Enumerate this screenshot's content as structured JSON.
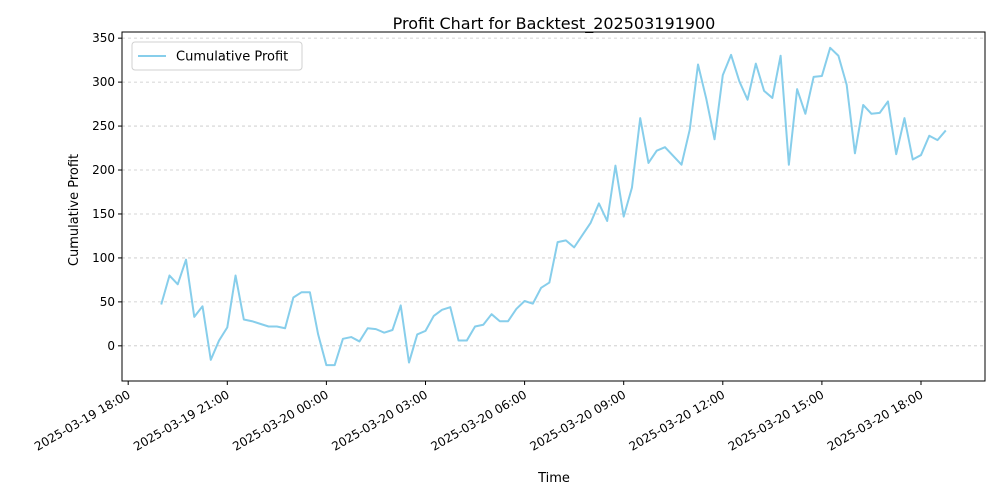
{
  "chart_data": {
    "type": "line",
    "title": "Profit Chart for Backtest_202503191900",
    "xlabel": "Time",
    "ylabel": "Cumulative Profit",
    "x": [
      "2025-03-19 19:00",
      "2025-03-19 19:15",
      "2025-03-19 19:30",
      "2025-03-19 19:45",
      "2025-03-19 20:00",
      "2025-03-19 20:15",
      "2025-03-19 20:30",
      "2025-03-19 20:45",
      "2025-03-19 21:00",
      "2025-03-19 21:15",
      "2025-03-19 21:30",
      "2025-03-19 21:45",
      "2025-03-19 22:00",
      "2025-03-19 22:15",
      "2025-03-19 22:30",
      "2025-03-19 22:45",
      "2025-03-19 23:00",
      "2025-03-19 23:15",
      "2025-03-19 23:30",
      "2025-03-19 23:45",
      "2025-03-20 00:00",
      "2025-03-20 00:15",
      "2025-03-20 00:30",
      "2025-03-20 00:45",
      "2025-03-20 01:00",
      "2025-03-20 01:15",
      "2025-03-20 01:30",
      "2025-03-20 01:45",
      "2025-03-20 02:00",
      "2025-03-20 02:15",
      "2025-03-20 02:30",
      "2025-03-20 02:45",
      "2025-03-20 03:00",
      "2025-03-20 03:15",
      "2025-03-20 03:30",
      "2025-03-20 03:45",
      "2025-03-20 04:00",
      "2025-03-20 04:15",
      "2025-03-20 04:30",
      "2025-03-20 04:45",
      "2025-03-20 05:00",
      "2025-03-20 05:15",
      "2025-03-20 05:30",
      "2025-03-20 05:45",
      "2025-03-20 06:00",
      "2025-03-20 06:15",
      "2025-03-20 06:30",
      "2025-03-20 06:45",
      "2025-03-20 07:00",
      "2025-03-20 07:15",
      "2025-03-20 07:30",
      "2025-03-20 07:45",
      "2025-03-20 08:00",
      "2025-03-20 08:15",
      "2025-03-20 08:30",
      "2025-03-20 08:45",
      "2025-03-20 09:00",
      "2025-03-20 09:15",
      "2025-03-20 09:30",
      "2025-03-20 09:45",
      "2025-03-20 10:00",
      "2025-03-20 10:15",
      "2025-03-20 10:30",
      "2025-03-20 10:45",
      "2025-03-20 11:00",
      "2025-03-20 11:15",
      "2025-03-20 11:30",
      "2025-03-20 11:45",
      "2025-03-20 12:00",
      "2025-03-20 12:15",
      "2025-03-20 12:30",
      "2025-03-20 12:45",
      "2025-03-20 13:00",
      "2025-03-20 13:15",
      "2025-03-20 13:30",
      "2025-03-20 13:45",
      "2025-03-20 14:00",
      "2025-03-20 14:15",
      "2025-03-20 14:30",
      "2025-03-20 14:45",
      "2025-03-20 15:00",
      "2025-03-20 15:15",
      "2025-03-20 15:30",
      "2025-03-20 15:45",
      "2025-03-20 16:00",
      "2025-03-20 16:15",
      "2025-03-20 16:30",
      "2025-03-20 16:45",
      "2025-03-20 17:00",
      "2025-03-20 17:15",
      "2025-03-20 17:30",
      "2025-03-20 17:45",
      "2025-03-20 18:00",
      "2025-03-20 18:15",
      "2025-03-20 18:30",
      "2025-03-20 18:45"
    ],
    "series": [
      {
        "name": "Cumulative Profit",
        "color": "#87ceeb",
        "values": [
          47,
          80,
          70,
          98,
          33,
          45,
          -16,
          6,
          21,
          80,
          30,
          28,
          25,
          22,
          22,
          20,
          55,
          61,
          61,
          13,
          -22,
          -22,
          8,
          10,
          5,
          20,
          19,
          15,
          18,
          46,
          -19,
          13,
          17,
          34,
          41,
          44,
          6,
          6,
          22,
          24,
          36,
          28,
          28,
          42,
          51,
          48,
          66,
          72,
          118,
          120,
          112,
          126,
          140,
          162,
          142,
          205,
          147,
          180,
          259,
          208,
          222,
          226,
          216,
          206,
          246,
          320,
          281,
          235,
          308,
          331,
          301,
          280,
          321,
          290,
          282,
          330,
          206,
          292,
          264,
          306,
          307,
          339,
          330,
          297,
          219,
          274,
          264,
          265,
          278,
          218,
          259,
          212,
          217,
          239,
          234,
          245
        ]
      }
    ],
    "xlim": [
      "2025-03-19 17:48:45",
      "2025-03-20 19:56:15"
    ],
    "xticks": [
      "2025-03-19 18:00",
      "2025-03-19 21:00",
      "2025-03-20 00:00",
      "2025-03-20 03:00",
      "2025-03-20 06:00",
      "2025-03-20 09:00",
      "2025-03-20 12:00",
      "2025-03-20 15:00",
      "2025-03-20 18:00"
    ],
    "ylim": [
      -40,
      357
    ],
    "yticks": [
      0,
      50,
      100,
      150,
      200,
      250,
      300,
      350
    ],
    "grid": true,
    "legend": "upper left"
  }
}
